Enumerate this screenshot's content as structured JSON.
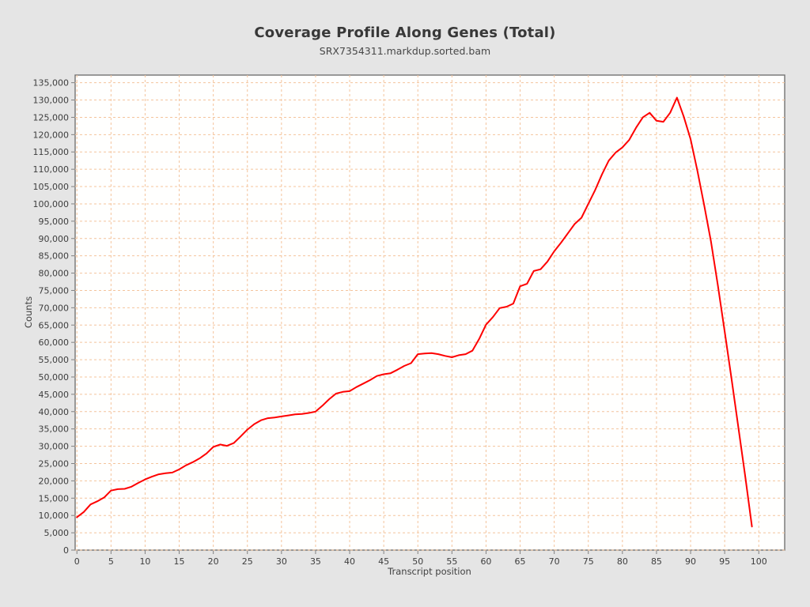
{
  "page": {
    "background": "#e5e5e5"
  },
  "header": {
    "title": "Coverage Profile Along Genes (Total)",
    "subtitle": "SRX7354311.markdup.sorted.bam"
  },
  "chart_data": {
    "type": "line",
    "title": "Coverage Profile Along Genes (Total)",
    "subtitle": "SRX7354311.markdup.sorted.bam",
    "xlabel": "Transcript position",
    "ylabel": "Counts",
    "xlim": [
      -0.26,
      103.8
    ],
    "ylim": [
      0,
      137200
    ],
    "xticks": [
      0,
      5,
      10,
      15,
      20,
      25,
      30,
      35,
      40,
      45,
      50,
      55,
      60,
      65,
      70,
      75,
      80,
      85,
      90,
      95,
      100
    ],
    "yticks": [
      0,
      5000,
      10000,
      15000,
      20000,
      25000,
      30000,
      35000,
      40000,
      45000,
      50000,
      55000,
      60000,
      65000,
      70000,
      75000,
      80000,
      85000,
      90000,
      95000,
      100000,
      105000,
      110000,
      115000,
      120000,
      125000,
      130000,
      135000
    ],
    "grid": true,
    "legend_position": "none",
    "colors": {
      "page_bg": "#e5e5e5",
      "plot_bg": "#fffffe",
      "plot_border": "#737373",
      "grid": "#f4c49c",
      "line": "#fe0000",
      "tick_label": "#3d3d3d",
      "axis_label": "#404040"
    },
    "x_start": 0,
    "x_step": 1,
    "series": [
      {
        "name": "SRX7354311.markdup.sorted.bam",
        "values": [
          9500,
          11000,
          13200,
          14100,
          15200,
          17200,
          17600,
          17700,
          18300,
          19400,
          20400,
          21200,
          21900,
          22200,
          22400,
          23300,
          24500,
          25400,
          26500,
          27900,
          29800,
          30500,
          30100,
          30900,
          32800,
          34800,
          36400,
          37500,
          38100,
          38300,
          38600,
          38900,
          39200,
          39300,
          39600,
          40000,
          41700,
          43600,
          45200,
          45700,
          45900,
          47100,
          48100,
          49100,
          50300,
          50800,
          51100,
          52100,
          53200,
          54000,
          56600,
          56800,
          56900,
          56600,
          56100,
          55700,
          56300,
          56600,
          57600,
          61000,
          65100,
          67300,
          69900,
          70300,
          71200,
          76200,
          76900,
          80600,
          81100,
          83300,
          86300,
          88800,
          91500,
          94200,
          96000,
          100000,
          104000,
          108500,
          112500,
          114800,
          116300,
          118500,
          122000,
          125000,
          126300,
          124000,
          123700,
          126300,
          130700,
          125200,
          118700,
          109500,
          99500,
          89000,
          76500,
          63200,
          49500,
          35500,
          21500,
          6800
        ]
      }
    ]
  }
}
